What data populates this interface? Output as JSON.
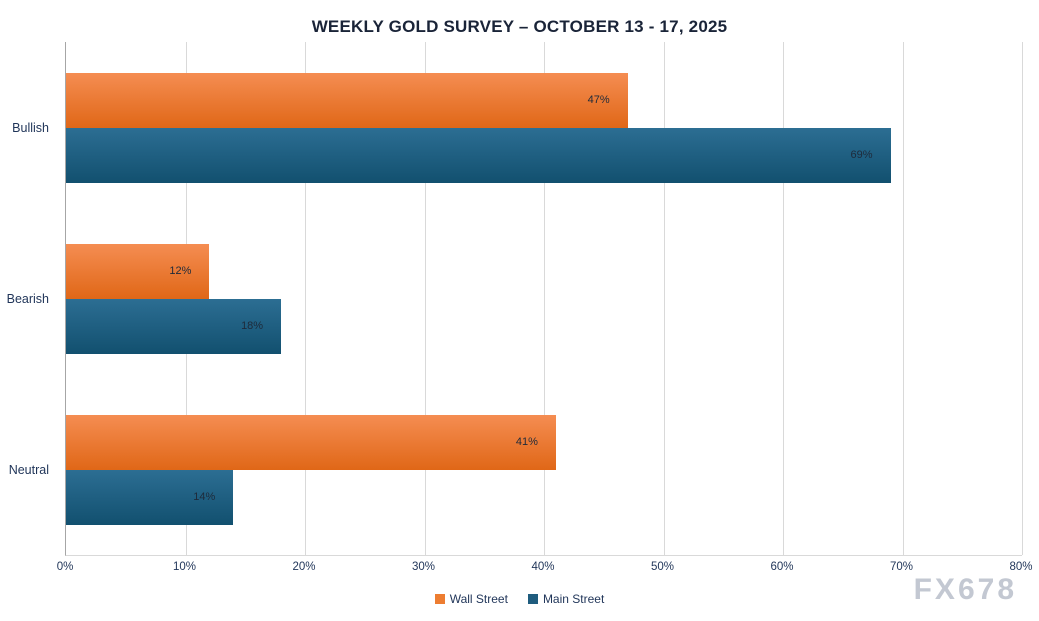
{
  "watermark": "FX678",
  "chart_data": {
    "type": "bar",
    "orientation": "horizontal",
    "title": "WEEKLY GOLD SURVEY – OCTOBER 13 - 17, 2025",
    "categories": [
      "Bullish",
      "Bearish",
      "Neutral"
    ],
    "series": [
      {
        "name": "Wall Street",
        "color": "#ED7D31",
        "color_top": "#F58D52",
        "color_bottom": "#E06717",
        "values": [
          47,
          12,
          41
        ]
      },
      {
        "name": "Main Street",
        "color": "#1F5C7E",
        "color_top": "#2C6E93",
        "color_bottom": "#12506F",
        "values": [
          69,
          18,
          14
        ]
      }
    ],
    "value_suffix": "%",
    "x_ticks": [
      "0%",
      "10%",
      "20%",
      "30%",
      "40%",
      "50%",
      "60%",
      "70%",
      "80%"
    ],
    "xlim": [
      0,
      80
    ],
    "grid": true,
    "legend_position": "bottom"
  }
}
